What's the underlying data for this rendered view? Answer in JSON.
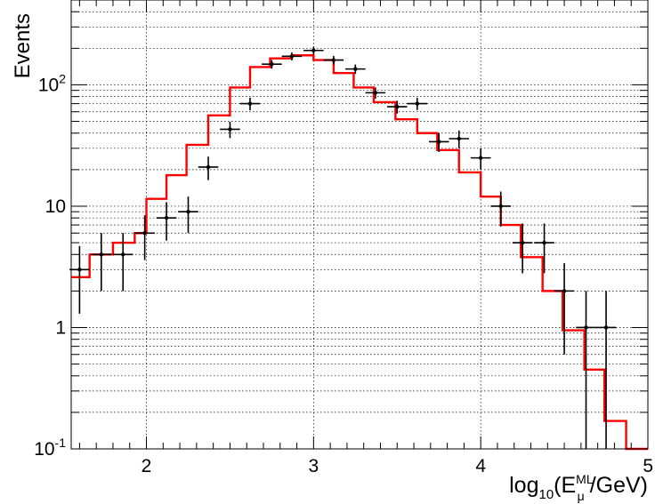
{
  "chart_data": {
    "type": "line",
    "title": "",
    "xlabel": "log10(Eμ^ML/GeV)",
    "ylabel": "Events",
    "xlim": [
      1.55,
      5.0
    ],
    "ylim": [
      0.1,
      500
    ],
    "y_scale": "log",
    "grid": true,
    "legend": "none",
    "x_ticks": [
      {
        "value": 2,
        "label": "2"
      },
      {
        "value": 3,
        "label": "3"
      },
      {
        "value": 4,
        "label": "4"
      },
      {
        "value": 5,
        "label": "5"
      }
    ],
    "y_ticks": [
      {
        "value": 0.1,
        "label_base": "10",
        "label_exp": "-1"
      },
      {
        "value": 1,
        "label_base": "1",
        "label_exp": ""
      },
      {
        "value": 10,
        "label_base": "10",
        "label_exp": ""
      },
      {
        "value": 100,
        "label_base": "10",
        "label_exp": "2"
      }
    ],
    "series": [
      {
        "kind": "histogram",
        "color": "#ff0000",
        "bin_edges": [
          1.55,
          1.66,
          1.8,
          1.93,
          2.0,
          2.12,
          2.24,
          2.37,
          2.5,
          2.62,
          2.74,
          2.87,
          3.0,
          3.12,
          3.24,
          3.36,
          3.49,
          3.62,
          3.74,
          3.87,
          4.0,
          4.12,
          4.24,
          4.37,
          4.49,
          4.62,
          4.74,
          4.87,
          5.0
        ],
        "values": [
          2.6,
          4.0,
          5.0,
          6.0,
          11.5,
          18.0,
          32.0,
          56.0,
          95.0,
          140.0,
          165.0,
          175.0,
          160.0,
          125.0,
          95.0,
          72.0,
          52.0,
          40.0,
          29.0,
          19.0,
          12.0,
          7.0,
          3.8,
          2.0,
          0.95,
          0.45,
          0.17,
          0.1
        ]
      },
      {
        "kind": "points",
        "color": "#000000",
        "points": [
          {
            "x": 1.6,
            "y": 3,
            "xerr": 0.06,
            "ylo": 1.3,
            "yhi": 4.7
          },
          {
            "x": 1.73,
            "y": 4,
            "xerr": 0.06,
            "ylo": 2.0,
            "yhi": 6.0
          },
          {
            "x": 1.86,
            "y": 4,
            "xerr": 0.06,
            "ylo": 2.0,
            "yhi": 6.0
          },
          {
            "x": 1.99,
            "y": 6,
            "xerr": 0.06,
            "ylo": 3.6,
            "yhi": 8.4
          },
          {
            "x": 2.12,
            "y": 8,
            "xerr": 0.06,
            "ylo": 5.2,
            "yhi": 10.8
          },
          {
            "x": 2.25,
            "y": 9,
            "xerr": 0.06,
            "ylo": 6.0,
            "yhi": 12.0
          },
          {
            "x": 2.37,
            "y": 21,
            "xerr": 0.06,
            "ylo": 16.4,
            "yhi": 25.6
          },
          {
            "x": 2.5,
            "y": 43,
            "xerr": 0.06,
            "ylo": 36.4,
            "yhi": 49.6
          },
          {
            "x": 2.62,
            "y": 70,
            "xerr": 0.06,
            "ylo": 61.6,
            "yhi": 78.4
          },
          {
            "x": 2.75,
            "y": 148,
            "xerr": 0.06,
            "ylo": 136,
            "yhi": 160
          },
          {
            "x": 2.87,
            "y": 172,
            "xerr": 0.06,
            "ylo": 159,
            "yhi": 185
          },
          {
            "x": 3.0,
            "y": 192,
            "xerr": 0.06,
            "ylo": 178,
            "yhi": 206
          },
          {
            "x": 3.12,
            "y": 160,
            "xerr": 0.06,
            "ylo": 147,
            "yhi": 173
          },
          {
            "x": 3.25,
            "y": 135,
            "xerr": 0.06,
            "ylo": 123,
            "yhi": 147
          },
          {
            "x": 3.37,
            "y": 86,
            "xerr": 0.06,
            "ylo": 77,
            "yhi": 95
          },
          {
            "x": 3.5,
            "y": 66,
            "xerr": 0.06,
            "ylo": 58,
            "yhi": 74
          },
          {
            "x": 3.62,
            "y": 70,
            "xerr": 0.06,
            "ylo": 62,
            "yhi": 78
          },
          {
            "x": 3.75,
            "y": 34,
            "xerr": 0.06,
            "ylo": 28,
            "yhi": 40
          },
          {
            "x": 3.87,
            "y": 36,
            "xerr": 0.06,
            "ylo": 30,
            "yhi": 42
          },
          {
            "x": 4.0,
            "y": 25,
            "xerr": 0.06,
            "ylo": 20,
            "yhi": 30
          },
          {
            "x": 4.12,
            "y": 10,
            "xerr": 0.06,
            "ylo": 6.8,
            "yhi": 13.2
          },
          {
            "x": 4.25,
            "y": 5,
            "xerr": 0.06,
            "ylo": 2.8,
            "yhi": 7.2
          },
          {
            "x": 4.38,
            "y": 5,
            "xerr": 0.06,
            "ylo": 2.8,
            "yhi": 7.2
          },
          {
            "x": 4.5,
            "y": 2,
            "xerr": 0.06,
            "ylo": 0.6,
            "yhi": 3.4
          },
          {
            "x": 4.63,
            "y": 1,
            "xerr": 0.06,
            "ylo": 0.1,
            "yhi": 2.0
          },
          {
            "x": 4.75,
            "y": 1,
            "xerr": 0.06,
            "ylo": 0.1,
            "yhi": 2.0
          }
        ]
      }
    ]
  }
}
